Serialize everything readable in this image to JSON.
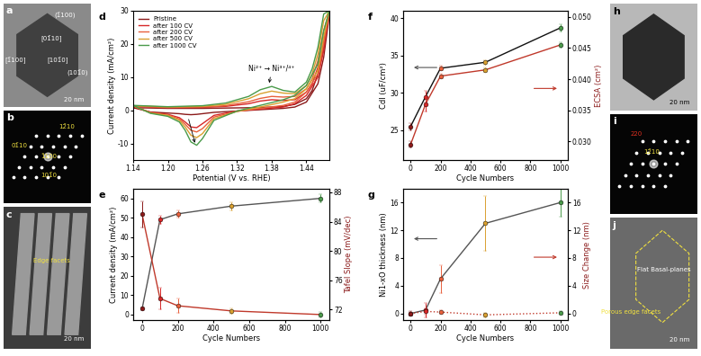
{
  "chart_data": [
    {
      "panel": "d",
      "type": "line",
      "x_label": "Potential (V vs. RHE)",
      "y_label": "Current density (mA/cm²)",
      "xlim": [
        1.14,
        1.48
      ],
      "xticks": [
        1.14,
        {
          "value": 1.2,
          "label": "1.20"
        },
        1.26,
        1.32,
        1.38,
        1.44
      ],
      "ylim": [
        -15,
        30
      ],
      "yticks": [
        -10,
        0,
        10,
        20,
        30
      ],
      "legend": "upper left",
      "annotations": [
        "Ni²⁺ → Ni³⁺/⁴⁺"
      ],
      "x": [
        1.14,
        1.2,
        1.26,
        1.3,
        1.34,
        1.36,
        1.38,
        1.4,
        1.42,
        1.44,
        1.45,
        1.46,
        1.47,
        1.48,
        1.47,
        1.46,
        1.44,
        1.42,
        1.4,
        1.36,
        1.32,
        1.28,
        1.26,
        1.25,
        1.24,
        1.23,
        1.22,
        1.2,
        1.17,
        1.14
      ],
      "series": [
        {
          "name": "Pristine",
          "color": "#8b1a1a",
          "line_style": "solid",
          "values": [
            0.8,
            0.6,
            0.6,
            0.7,
            0.8,
            0.9,
            1.0,
            1.2,
            1.8,
            3.5,
            6,
            11,
            19,
            29,
            16,
            8,
            2.5,
            1.0,
            0.6,
            0.2,
            -0.2,
            -0.6,
            -1.0,
            -1.2,
            -1.3,
            -1.2,
            -1.0,
            -0.8,
            -0.5,
            0.8
          ]
        },
        {
          "name": "after 100 CV",
          "color": "#d62728",
          "line_style": "solid",
          "values": [
            1.2,
            0.8,
            0.9,
            1.2,
            2.0,
            2.8,
            3.2,
            3.0,
            3.2,
            5.5,
            8,
            13,
            21,
            30,
            18,
            10,
            4.5,
            2.0,
            1.0,
            0.4,
            -0.2,
            -1.5,
            -4.0,
            -5.2,
            -5.0,
            -3.5,
            -2.2,
            -1.2,
            -0.6,
            1.2
          ]
        },
        {
          "name": "after 200 CV",
          "color": "#e8603c",
          "line_style": "solid",
          "values": [
            1.3,
            0.9,
            1.0,
            1.4,
            2.6,
            3.6,
            4.2,
            4.0,
            4.2,
            6.5,
            9.5,
            15,
            24,
            30,
            20,
            11,
            5.5,
            2.5,
            1.5,
            0.6,
            -0.3,
            -2.0,
            -5.5,
            -6.5,
            -6.0,
            -4.2,
            -2.6,
            -1.4,
            -0.7,
            1.3
          ]
        },
        {
          "name": "after 500 CV",
          "color": "#d9a030",
          "line_style": "solid",
          "values": [
            1.4,
            1.0,
            1.2,
            1.8,
            3.5,
            5.0,
            5.8,
            5.2,
            5.0,
            7.5,
            11,
            17,
            27,
            30,
            22,
            12,
            6.5,
            3.5,
            2.5,
            1.0,
            -0.3,
            -2.5,
            -7.0,
            -8.2,
            -7.5,
            -5.0,
            -3.0,
            -1.5,
            -0.8,
            1.4
          ]
        },
        {
          "name": "after 1000 CV",
          "color": "#4a9a4a",
          "line_style": "solid",
          "values": [
            1.5,
            1.1,
            1.4,
            2.2,
            4.2,
            6.2,
            7.2,
            6.0,
            5.5,
            8.5,
            12.5,
            19,
            29,
            30,
            24,
            14,
            7.5,
            4.5,
            3.2,
            1.5,
            -0.2,
            -3.0,
            -8.5,
            -10.5,
            -9.5,
            -6.0,
            -3.5,
            -1.8,
            -0.9,
            1.5
          ]
        }
      ]
    },
    {
      "panel": "e",
      "type": "line",
      "x_label": "Cycle Numbers",
      "y_label": "Current density (mA/cm²)",
      "y2_label": "Tafel Slope (mV/dec)",
      "x": [
        0,
        100,
        200,
        500,
        1000
      ],
      "xlim": [
        -50,
        1050
      ],
      "xticks": [
        0,
        200,
        400,
        600,
        800,
        1000
      ],
      "ylim": [
        -3,
        65
      ],
      "yticks": [
        0,
        10,
        20,
        30,
        40,
        50,
        60
      ],
      "y2lim": [
        70.5,
        88.5
      ],
      "y2ticks": [
        72,
        76,
        80,
        84,
        88
      ],
      "series": [
        {
          "color": "#555555",
          "marker": "o",
          "line_style": "solid",
          "colors": [
            "#8b1a1a",
            "#d62728",
            "#e8603c",
            "#d9a030",
            "#4a9a4a"
          ],
          "values": [
            3,
            49,
            52,
            56,
            60
          ],
          "errors": [
            0.5,
            2,
            2,
            2,
            2
          ]
        },
        {
          "axis": "y2",
          "color": "#c0392b",
          "marker": "o",
          "line_style": "solid",
          "colors": [
            "#8b1a1a",
            "#d62728",
            "#e8603c",
            "#d9a030",
            "#4a9a4a"
          ],
          "values": [
            85,
            73.5,
            72.5,
            71.8,
            71.3
          ],
          "errors": [
            1.8,
            1.5,
            1,
            0.4,
            0.4
          ]
        }
      ]
    },
    {
      "panel": "f",
      "type": "line",
      "x_label": "Cycle Numbers",
      "y_label": "Cdl (uF/cm²)",
      "y2_label": "ECSA (cm²)",
      "x": [
        0,
        100,
        200,
        500,
        1000
      ],
      "xlim": [
        -50,
        1050
      ],
      "xticks": [
        0,
        200,
        400,
        600,
        800,
        1000
      ],
      "ylim": [
        21,
        41
      ],
      "yticks": [
        25,
        30,
        35,
        40
      ],
      "y2lim": [
        0.027,
        0.051
      ],
      "y2ticks": [
        {
          "value": 0.03,
          "label": "0.030"
        },
        0.035,
        {
          "value": 0.04,
          "label": "0.040"
        },
        0.045,
        {
          "value": 0.05,
          "label": "0.050"
        }
      ],
      "series": [
        {
          "color": "#111111",
          "marker": "o",
          "line_style": "solid",
          "colors": [
            "#8b1a1a",
            "#d62728",
            "#e8603c",
            "#d9a030",
            "#4a9a4a"
          ],
          "values": [
            25.5,
            29.5,
            33.3,
            34.1,
            38.7
          ],
          "errors": [
            0.5,
            0.8,
            0.3,
            0.3,
            0.5
          ]
        },
        {
          "axis": "y2",
          "color": "#c0392b",
          "marker": "o",
          "line_style": "solid",
          "colors": [
            "#8b1a1a",
            "#d62728",
            "#e8603c",
            "#d9a030",
            "#4a9a4a"
          ],
          "values": [
            0.0295,
            0.036,
            0.0405,
            0.0415,
            0.0455
          ],
          "errors": [
            0.0005,
            0.0012,
            0.0004,
            0.0004,
            0.0005
          ]
        }
      ]
    },
    {
      "panel": "g",
      "type": "line",
      "x_label": "Cycle Numbers",
      "y_label": "Ni1-xO thickness (nm)",
      "y2_label": "Size Change (nm)",
      "x": [
        0,
        100,
        200,
        500,
        1000
      ],
      "xlim": [
        -50,
        1050
      ],
      "xticks": [
        0,
        200,
        400,
        600,
        800,
        1000
      ],
      "ylim": [
        -1,
        18
      ],
      "yticks": [
        0,
        4,
        8,
        12,
        16
      ],
      "y2lim": [
        -1,
        18
      ],
      "y2ticks": [
        0,
        4,
        8,
        12,
        16
      ],
      "series": [
        {
          "color": "#555555",
          "marker": "o",
          "line_style": "solid",
          "colors": [
            "#8b1a1a",
            "#d62728",
            "#e8603c",
            "#d9a030",
            "#4a9a4a"
          ],
          "values": [
            0,
            0.5,
            5,
            13,
            16
          ],
          "errors": [
            0.3,
            1,
            2,
            4,
            2
          ]
        },
        {
          "axis": "y2",
          "color": "#c0392b",
          "marker": "o",
          "line_style": "dotted",
          "colors": [
            "#8b1a1a",
            "#d62728",
            "#e8603c",
            "#d9a030",
            "#4a9a4a"
          ],
          "values": [
            0,
            0.3,
            0.2,
            -0.2,
            0.1
          ],
          "errors": [
            0.2,
            0.5,
            0.3,
            0.3,
            0.2
          ]
        }
      ]
    }
  ],
  "images": [
    {
      "panel": "a",
      "texts": [
        "(1̄100)",
        "[01̄10]",
        "[1̄100]",
        "[101̄0]",
        "(101̄0)",
        "20 nm"
      ]
    },
    {
      "panel": "b",
      "texts": [
        "12̄10",
        "01̄10",
        "1̄100",
        "101̄0"
      ]
    },
    {
      "panel": "c",
      "texts": [
        "Edge facets",
        "20 nm"
      ]
    },
    {
      "panel": "h",
      "texts": [
        "20 nm"
      ]
    },
    {
      "panel": "i",
      "texts": [
        "220",
        "12̄10"
      ]
    },
    {
      "panel": "j",
      "texts": [
        "Flat Basal-planes",
        "Porous edge facets",
        "20 nm"
      ]
    }
  ]
}
